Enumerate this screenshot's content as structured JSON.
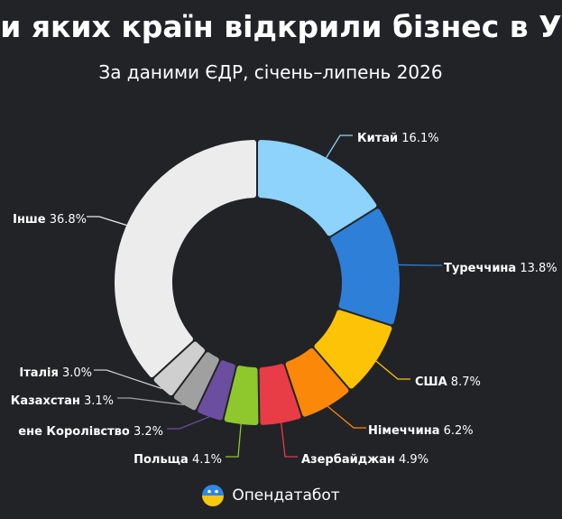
{
  "title": "ни яких країн відкрили бізнес в У",
  "subtitle": "За даними ЄДР, січень–липень 2026",
  "brand": "Опендатабот",
  "chart_data": {
    "type": "pie",
    "donut": true,
    "series": [
      {
        "label": "Китай",
        "value": 16.1,
        "color": "#8ed3fb"
      },
      {
        "label": "Туреччина",
        "value": 13.8,
        "color": "#2e7fd8"
      },
      {
        "label": "США",
        "value": 8.7,
        "color": "#fdc306"
      },
      {
        "label": "Німеччина",
        "value": 6.2,
        "color": "#fb8808"
      },
      {
        "label": "Азербайджан",
        "value": 4.9,
        "color": "#e83c47"
      },
      {
        "label": "Польща",
        "value": 4.1,
        "color": "#8ec82c"
      },
      {
        "label": "ене Королівство",
        "value": 3.2,
        "color": "#6c4ea0"
      },
      {
        "label": "Казахстан",
        "value": 3.1,
        "color": "#a0a0a0"
      },
      {
        "label": "Італія",
        "value": 3.0,
        "color": "#cfcfcf"
      },
      {
        "label": "Інше",
        "value": 36.8,
        "color": "#ececec"
      }
    ]
  }
}
